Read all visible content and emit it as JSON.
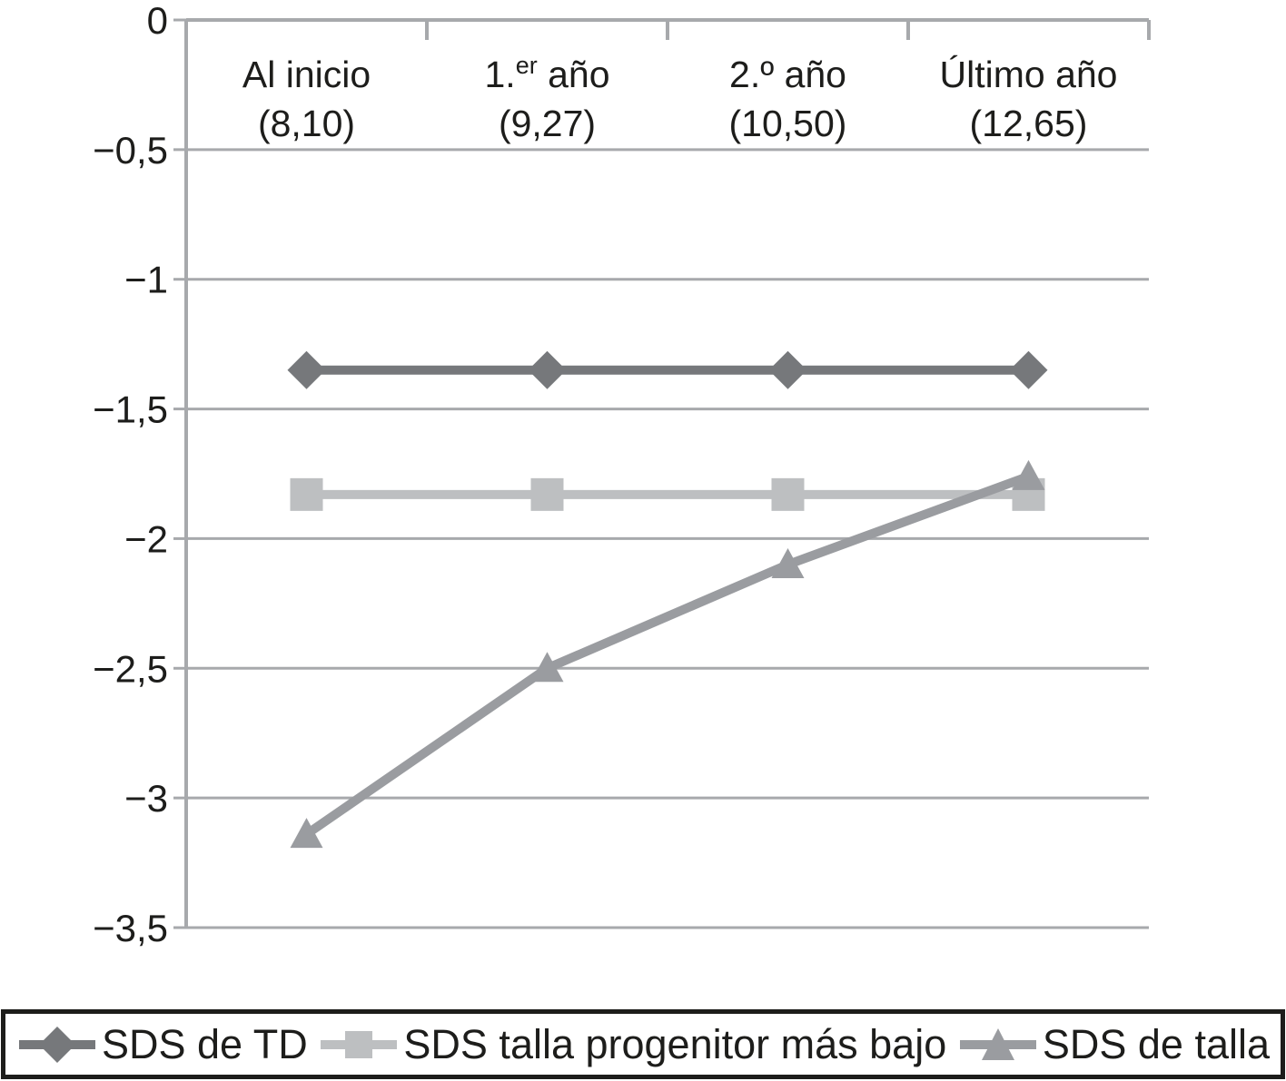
{
  "chart_data": {
    "type": "line",
    "title": "",
    "xlabel": "",
    "ylabel": "",
    "ylim": [
      -3.5,
      0
    ],
    "grid": true,
    "legend_position": "bottom",
    "colors": {
      "grid": "#a7a9ac",
      "text": "#1d1d1b",
      "background": "#ffffff",
      "legend_border": "#1d1d1b"
    },
    "yticks": [
      {
        "value": 0,
        "label": "0"
      },
      {
        "value": -0.5,
        "label": "−0,5"
      },
      {
        "value": -1,
        "label": "−1"
      },
      {
        "value": -1.5,
        "label": "−1,5"
      },
      {
        "value": -2,
        "label": "−2"
      },
      {
        "value": -2.5,
        "label": "−2,5"
      },
      {
        "value": -3,
        "label": "−3"
      },
      {
        "value": -3.5,
        "label": "−3,5"
      }
    ],
    "categories": [
      {
        "pre": "Al inicio",
        "sup": "",
        "post": "",
        "line2": "(8,10)"
      },
      {
        "pre": "1.",
        "sup": "er",
        "post": " año",
        "line2": "(9,27)"
      },
      {
        "pre": "2.º año",
        "sup": "",
        "post": "",
        "line2": "(10,50)"
      },
      {
        "pre": "Último año",
        "sup": "",
        "post": "",
        "line2": "(12,65)"
      }
    ],
    "series": [
      {
        "name": "SDS de TD",
        "marker": "diamond",
        "color": "#76787b",
        "values": [
          -1.35,
          -1.35,
          -1.35,
          -1.35
        ]
      },
      {
        "name": "SDS talla progenitor más bajo",
        "marker": "square",
        "color": "#bdbfc1",
        "values": [
          -1.83,
          -1.83,
          -1.83,
          -1.83
        ]
      },
      {
        "name": "SDS de talla",
        "marker": "triangle",
        "color": "#9a9ca0",
        "values": [
          -3.14,
          -2.5,
          -2.1,
          -1.76
        ]
      }
    ]
  },
  "legend": {
    "items": [
      {
        "label": "SDS de TD"
      },
      {
        "label": "SDS talla progenitor más bajo"
      },
      {
        "label": "SDS de talla"
      }
    ]
  }
}
